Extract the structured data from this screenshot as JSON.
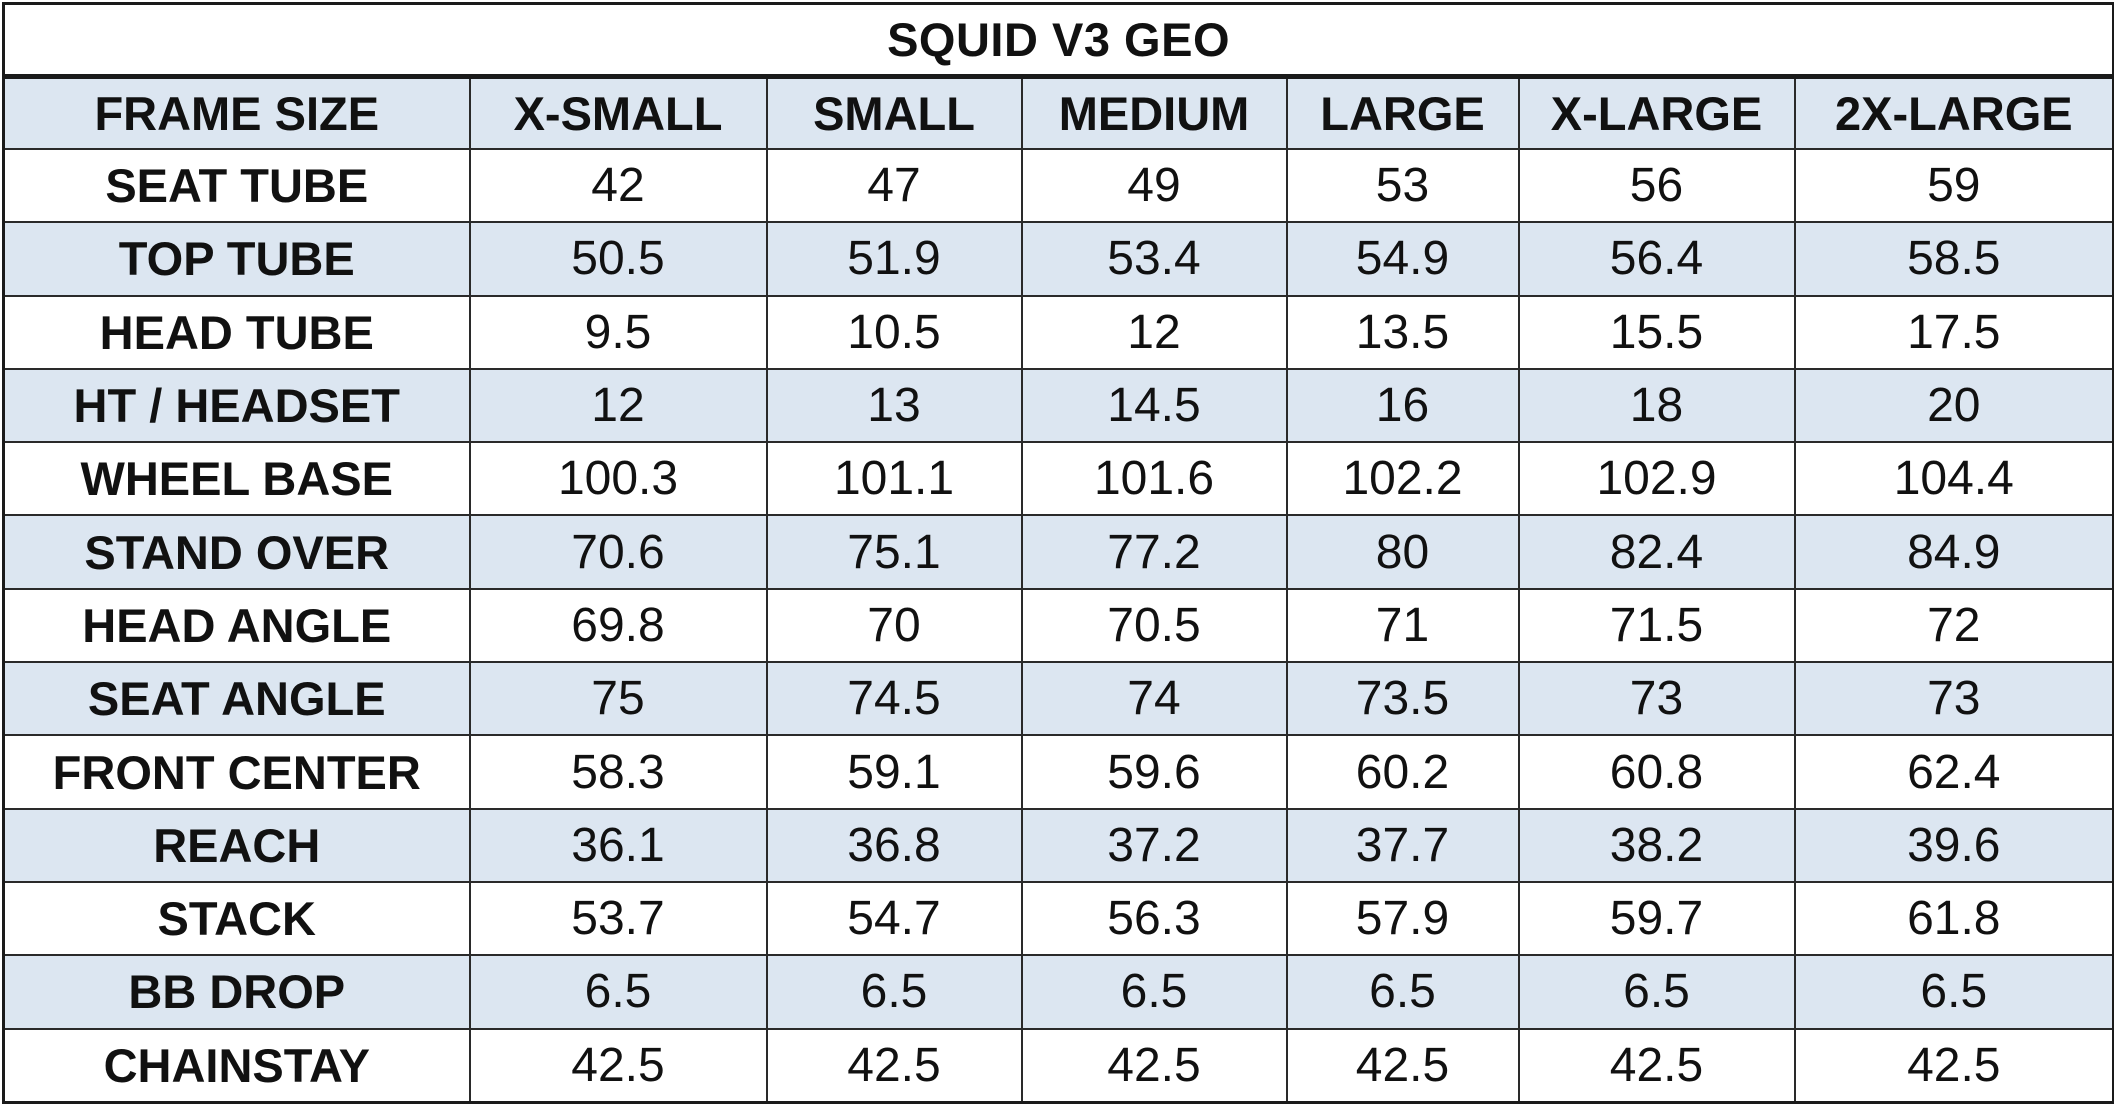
{
  "chart_data": {
    "type": "table",
    "title": "SQUID V3 GEO",
    "columns": [
      "FRAME SIZE",
      "X-SMALL",
      "SMALL",
      "MEDIUM",
      "LARGE",
      "X-LARGE",
      "2X-LARGE"
    ],
    "rows": [
      {
        "label": "SEAT TUBE",
        "values": [
          "42",
          "47",
          "49",
          "53",
          "56",
          "59"
        ]
      },
      {
        "label": "TOP TUBE",
        "values": [
          "50.5",
          "51.9",
          "53.4",
          "54.9",
          "56.4",
          "58.5"
        ]
      },
      {
        "label": "HEAD TUBE",
        "values": [
          "9.5",
          "10.5",
          "12",
          "13.5",
          "15.5",
          "17.5"
        ]
      },
      {
        "label": "HT / HEADSET",
        "values": [
          "12",
          "13",
          "14.5",
          "16",
          "18",
          "20"
        ]
      },
      {
        "label": "WHEEL BASE",
        "values": [
          "100.3",
          "101.1",
          "101.6",
          "102.2",
          "102.9",
          "104.4"
        ]
      },
      {
        "label": "STAND OVER",
        "values": [
          "70.6",
          "75.1",
          "77.2",
          "80",
          "82.4",
          "84.9"
        ]
      },
      {
        "label": "HEAD ANGLE",
        "values": [
          "69.8",
          "70",
          "70.5",
          "71",
          "71.5",
          "72"
        ]
      },
      {
        "label": "SEAT ANGLE",
        "values": [
          "75",
          "74.5",
          "74",
          "73.5",
          "73",
          "73"
        ]
      },
      {
        "label": "FRONT CENTER",
        "values": [
          "58.3",
          "59.1",
          "59.6",
          "60.2",
          "60.8",
          "62.4"
        ]
      },
      {
        "label": "REACH",
        "values": [
          "36.1",
          "36.8",
          "37.2",
          "37.7",
          "38.2",
          "39.6"
        ]
      },
      {
        "label": "STACK",
        "values": [
          "53.7",
          "54.7",
          "56.3",
          "57.9",
          "59.7",
          "61.8"
        ]
      },
      {
        "label": "BB DROP",
        "values": [
          "6.5",
          "6.5",
          "6.5",
          "6.5",
          "6.5",
          "6.5"
        ]
      },
      {
        "label": "CHAINSTAY",
        "values": [
          "42.5",
          "42.5",
          "42.5",
          "42.5",
          "42.5",
          "42.5"
        ]
      }
    ]
  },
  "colors": {
    "header_fill": "#dce6f1",
    "alt_row_fill": "#dce6f1",
    "plain_row_fill": "#ffffff",
    "border": "#1a1a1a"
  }
}
